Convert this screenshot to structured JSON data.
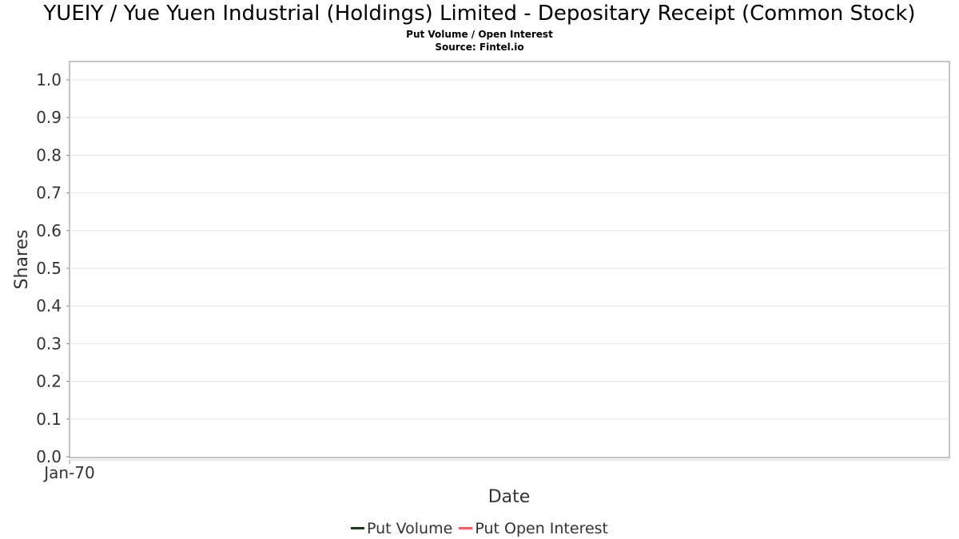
{
  "header": {
    "title": "YUEIY / Yue Yuen Industrial (Holdings) Limited - Depositary Receipt (Common Stock)",
    "subtitle": "Put Volume / Open Interest",
    "source": "Source: Fintel.io"
  },
  "chart_data": {
    "type": "line",
    "xlabel": "Date",
    "ylabel": "Shares",
    "ylim": [
      0,
      1.0
    ],
    "yticks": [
      "0.0",
      "0.1",
      "0.2",
      "0.3",
      "0.4",
      "0.5",
      "0.6",
      "0.7",
      "0.8",
      "0.9",
      "1.0"
    ],
    "xticks": [
      "Jan-70"
    ],
    "grid": true,
    "legend_position": "bottom",
    "series": [
      {
        "name": "Put Volume",
        "color": "#1a3d1a",
        "values": []
      },
      {
        "name": "Put Open Interest",
        "color": "#f06060",
        "values": []
      }
    ]
  }
}
